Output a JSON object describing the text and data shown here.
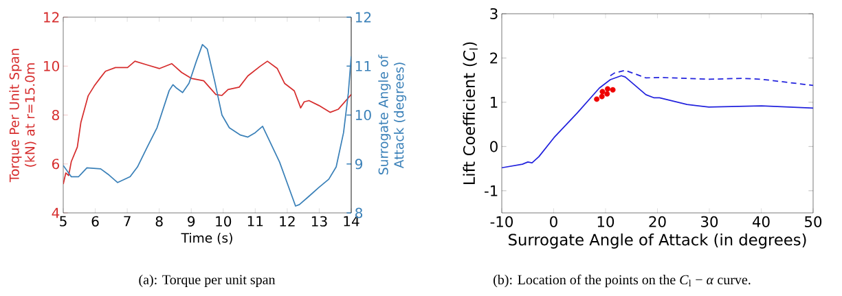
{
  "chart_data": [
    {
      "type": "line",
      "xlabel": "Time (s)",
      "ylabel": "Torque Per Unit Span (kN) at r=15.0m",
      "y2label": "Surrogate Angle of Attack (degrees)",
      "xlim": [
        5,
        14
      ],
      "xticks": [
        5,
        6,
        7,
        8,
        9,
        10,
        11,
        12,
        13,
        14
      ],
      "ylim": [
        4,
        12
      ],
      "yticks": [
        4,
        6,
        8,
        10,
        12
      ],
      "y2lim": [
        8,
        12
      ],
      "y2ticks": [
        8,
        9,
        10,
        11,
        12
      ],
      "annotations": [
        "(a): Torque per unit span"
      ],
      "series": [
        {
          "color": "#d62d2d",
          "x": [
            5.0,
            5.08,
            5.17,
            5.25,
            5.44,
            5.55,
            5.78,
            5.97,
            6.17,
            6.32,
            6.63,
            7.01,
            7.24,
            7.62,
            8.01,
            8.39,
            8.7,
            9.0,
            9.39,
            9.77,
            9.96,
            10.15,
            10.5,
            10.77,
            11.15,
            11.38,
            11.69,
            11.92,
            12.22,
            12.42,
            12.53,
            12.68,
            12.99,
            13.34,
            13.6,
            14.0
          ],
          "values": [
            5.18,
            5.63,
            5.53,
            6.09,
            6.69,
            7.69,
            8.79,
            9.19,
            9.54,
            9.79,
            9.94,
            9.94,
            10.2,
            10.05,
            9.9,
            10.1,
            9.74,
            9.5,
            9.4,
            8.84,
            8.8,
            9.04,
            9.14,
            9.6,
            9.99,
            10.2,
            9.9,
            9.29,
            8.99,
            8.29,
            8.54,
            8.59,
            8.39,
            8.11,
            8.24,
            8.84
          ]
        },
        {
          "color": "#3a80b8",
          "axis": "y2",
          "x": [
            5.0,
            5.25,
            5.48,
            5.74,
            6.17,
            6.4,
            6.7,
            7.09,
            7.32,
            7.62,
            7.93,
            8.31,
            8.43,
            8.54,
            8.73,
            8.93,
            9.16,
            9.35,
            9.5,
            9.73,
            9.96,
            10.19,
            10.54,
            10.77,
            11.0,
            11.23,
            11.76,
            12.26,
            12.38,
            12.68,
            12.99,
            13.3,
            13.53,
            13.76,
            13.91,
            14.0
          ],
          "values": [
            8.97,
            8.74,
            8.74,
            8.92,
            8.9,
            8.79,
            8.62,
            8.74,
            8.94,
            9.34,
            9.74,
            10.5,
            10.62,
            10.55,
            10.46,
            10.65,
            11.1,
            11.44,
            11.35,
            10.7,
            10.0,
            9.74,
            9.59,
            9.55,
            9.64,
            9.77,
            9.04,
            8.14,
            8.17,
            8.34,
            8.52,
            8.69,
            8.94,
            9.64,
            10.45,
            11.2
          ]
        }
      ]
    },
    {
      "type": "line",
      "xlabel": "Surrogate Angle of Attack (in degrees)",
      "ylabel": "Lift Coefficient (*C*$_{l}$)",
      "xlim": [
        -10,
        50
      ],
      "xticks": [
        -10,
        0,
        10,
        20,
        30,
        40,
        50
      ],
      "ylim": [
        -1.5,
        3
      ],
      "yticks": [
        -1,
        0,
        1,
        2,
        3
      ],
      "annotations": [
        "(b): Location of the points on the *C*$_{l}$ − *α* curve."
      ],
      "series": [
        {
          "color": "#2222dd",
          "x": [
            -10,
            -6.03,
            -4.97,
            -4.17,
            -2.85,
            0.06,
            4.56,
            8.8,
            10.92,
            13.04,
            13.8,
            17.78,
            19.37,
            20.4,
            25.7,
            29.9,
            40.05,
            50
          ],
          "values": [
            -0.48,
            -0.4,
            -0.35,
            -0.37,
            -0.23,
            0.2,
            0.76,
            1.32,
            1.51,
            1.6,
            1.57,
            1.17,
            1.1,
            1.1,
            0.95,
            0.89,
            0.92,
            0.87
          ]
        },
        {
          "color": "#2222dd",
          "line_style": "dashed",
          "x": [
            10.92,
            11.7,
            13.8,
            17.8,
            20.4,
            29.9,
            36.3,
            40,
            50
          ],
          "values": [
            1.6,
            1.66,
            1.72,
            1.55,
            1.56,
            1.52,
            1.54,
            1.52,
            1.38
          ]
        },
        {
          "type": "scatter",
          "color": "#ee0000",
          "marker": "circle",
          "x": [
            8.3,
            9.3,
            10.3,
            11.4,
            9.4,
            10.4
          ],
          "values": [
            1.07,
            1.13,
            1.19,
            1.28,
            1.24,
            1.3
          ]
        }
      ]
    }
  ]
}
